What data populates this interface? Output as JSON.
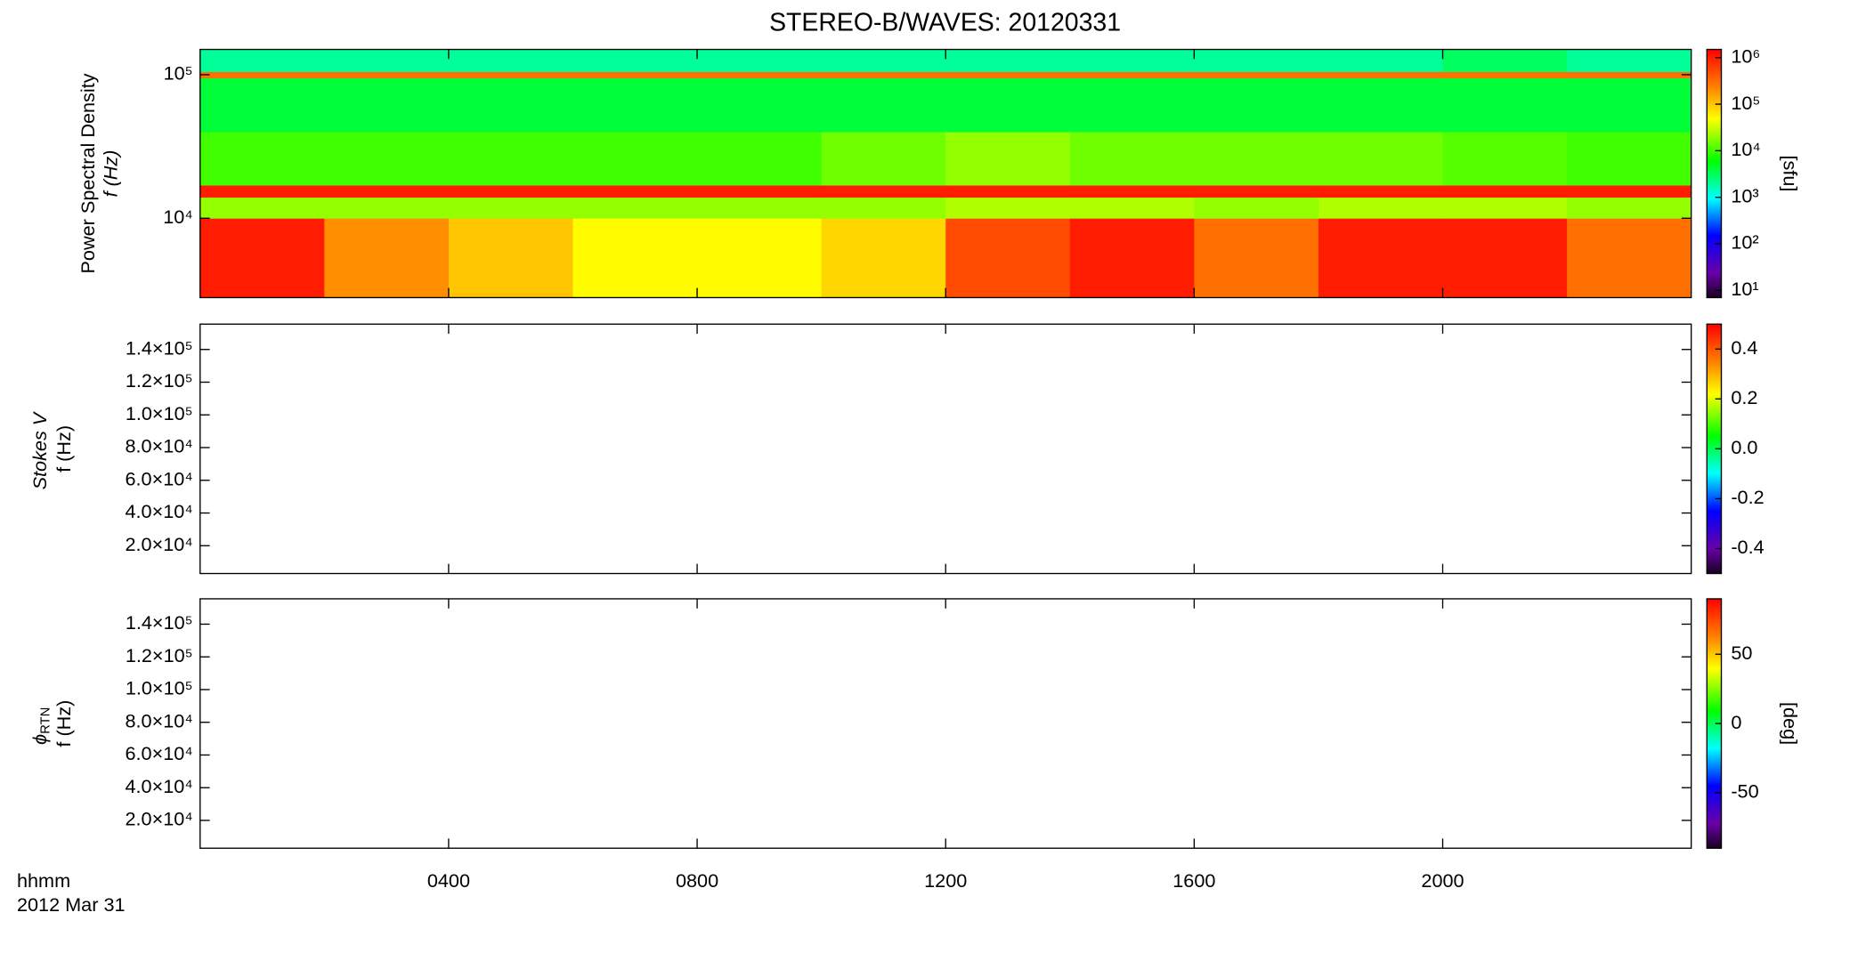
{
  "chart_data": [
    {
      "type": "spectrogram",
      "title": "STEREO-B/WAVES: 20120331",
      "ylabel": "Power Spectral Density",
      "ylabel2": "f (Hz)",
      "ylog": true,
      "ylim": [
        2800,
        150000
      ],
      "yticks": [
        {
          "value": 10000,
          "label": "10⁴"
        },
        {
          "value": 100000,
          "label": "10⁵"
        }
      ],
      "xlim": [
        0,
        24
      ],
      "xticks": [
        {
          "value": 4,
          "label": "0400"
        },
        {
          "value": 8,
          "label": "0800"
        },
        {
          "value": 12,
          "label": "1200"
        },
        {
          "value": 16,
          "label": "1600"
        },
        {
          "value": 20,
          "label": "2000"
        }
      ],
      "zlog": true,
      "zlim": [
        7,
        1500000
      ],
      "zticks": [
        {
          "value": 10,
          "label": "10¹"
        },
        {
          "value": 100,
          "label": "10²"
        },
        {
          "value": 1000,
          "label": "10³"
        },
        {
          "value": 10000,
          "label": "10⁴"
        },
        {
          "value": 100000,
          "label": "10⁵"
        },
        {
          "value": 1000000,
          "label": "10⁶"
        }
      ],
      "colorbar_label": "[sfu]",
      "time_edges": [
        0,
        2,
        4,
        6,
        8,
        10,
        12,
        14,
        16,
        18,
        20,
        22,
        24
      ],
      "freq_edges": [
        2800,
        10000,
        14000,
        17000,
        40000,
        95000,
        105000,
        150000
      ],
      "values": [
        [
          1000000,
          200000,
          100000,
          50000,
          50000,
          80000,
          500000,
          1000000,
          300000,
          1000000,
          1000000,
          300000
        ],
        [
          20000,
          20000,
          20000,
          20000,
          20000,
          20000,
          25000,
          25000,
          20000,
          25000,
          25000,
          20000
        ],
        [
          1000000,
          1000000,
          1000000,
          1000000,
          1000000,
          1000000,
          1000000,
          1000000,
          1000000,
          1000000,
          1000000,
          1000000
        ],
        [
          10000,
          10000,
          10000,
          10000,
          10000,
          15000,
          20000,
          15000,
          15000,
          15000,
          12000,
          10000
        ],
        [
          4000,
          4000,
          4000,
          4000,
          4000,
          4000,
          4000,
          4000,
          4000,
          4000,
          4000,
          4000
        ],
        [
          300000,
          300000,
          300000,
          300000,
          300000,
          300000,
          300000,
          300000,
          300000,
          300000,
          300000,
          300000
        ],
        [
          2000,
          2000,
          2000,
          2000,
          2000,
          2000,
          2000,
          2000,
          2000,
          2000,
          3000,
          2000
        ]
      ]
    },
    {
      "type": "spectrogram",
      "ylabel": "Stokes V",
      "ylabel2": "f (Hz)",
      "ylog": false,
      "ylim": [
        3000,
        155500
      ],
      "yticks": [
        {
          "value": 20000,
          "label": "2.0×10⁴"
        },
        {
          "value": 40000,
          "label": "4.0×10⁴"
        },
        {
          "value": 60000,
          "label": "6.0×10⁴"
        },
        {
          "value": 80000,
          "label": "8.0×10⁴"
        },
        {
          "value": 100000,
          "label": "1.0×10⁵"
        },
        {
          "value": 120000,
          "label": "1.2×10⁵"
        },
        {
          "value": 140000,
          "label": "1.4×10⁵"
        }
      ],
      "xlim": [
        0,
        24
      ],
      "xticks": [
        {
          "value": 4,
          "label": "0400"
        },
        {
          "value": 8,
          "label": "0800"
        },
        {
          "value": 12,
          "label": "1200"
        },
        {
          "value": 16,
          "label": "1600"
        },
        {
          "value": 20,
          "label": "2000"
        }
      ],
      "zlog": false,
      "zlim": [
        -0.5,
        0.5
      ],
      "zticks": [
        -0.4,
        -0.2,
        {
          "value": 0,
          "label": "0.0"
        },
        0.2,
        0.4
      ]
    },
    {
      "type": "spectrogram",
      "ylabel": "ϕ",
      "ylabel_sub": "RTN",
      "ylabel2": "f (Hz)",
      "ylog": false,
      "ylim": [
        3000,
        155500
      ],
      "yticks": [
        {
          "value": 20000,
          "label": "2.0×10⁴"
        },
        {
          "value": 40000,
          "label": "4.0×10⁴"
        },
        {
          "value": 60000,
          "label": "6.0×10⁴"
        },
        {
          "value": 80000,
          "label": "8.0×10⁴"
        },
        {
          "value": 100000,
          "label": "1.0×10⁵"
        },
        {
          "value": 120000,
          "label": "1.2×10⁵"
        },
        {
          "value": 140000,
          "label": "1.4×10⁵"
        }
      ],
      "xlim": [
        0,
        24
      ],
      "xticks": [
        {
          "value": 4,
          "label": "0400"
        },
        {
          "value": 8,
          "label": "0800"
        },
        {
          "value": 12,
          "label": "1200"
        },
        {
          "value": 16,
          "label": "1600"
        },
        {
          "value": 20,
          "label": "2000"
        }
      ],
      "xlabel": "hhmm",
      "date": "2012 Mar 31",
      "zlog": false,
      "zlim": [
        -90,
        90
      ],
      "zticks": [
        -50,
        0,
        50
      ],
      "colorbar_label": "[deg]"
    }
  ]
}
